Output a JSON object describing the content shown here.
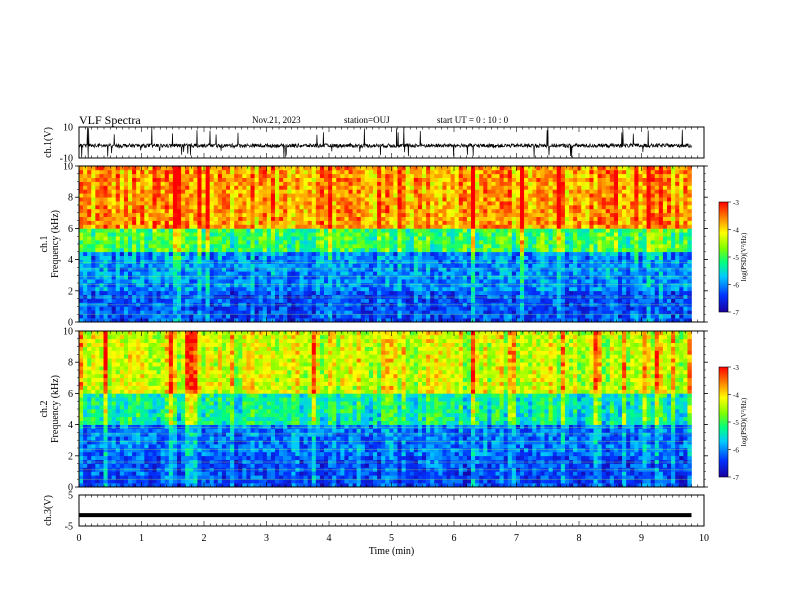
{
  "header": {
    "title": "VLF Spectra",
    "date": "Nov.21, 2023",
    "station": "station=OUJ",
    "start": "start UT =  0 : 10 : 0"
  },
  "chart_data": [
    {
      "type": "line",
      "panel": "ch1-waveform",
      "ylabel": "ch.1(V)",
      "ylim": [
        -10,
        10
      ],
      "yticks": [
        "10",
        "-10"
      ],
      "x_range_min": [
        0,
        10
      ],
      "description_values": "noisy waveform centered near 0 V with spikes up to about +10 V and down to about -10 V"
    },
    {
      "type": "heatmap",
      "panel": "ch1-spectrogram",
      "ylabel_top": "ch.1",
      "ylabel": "Frequency (kHz)",
      "ylim": [
        0,
        10
      ],
      "yticks": [
        "0",
        "2",
        "4",
        "6",
        "8",
        "10"
      ],
      "colorbar": {
        "label": "log(PSD)(V²/Hz)",
        "range": [
          -7,
          -3
        ],
        "ticks": [
          "-3",
          "-4",
          "-5",
          "-6",
          "-7"
        ]
      },
      "bands": [
        {
          "freq_kHz": [
            0,
            2
          ],
          "log_psd": -6.3
        },
        {
          "freq_kHz": [
            2,
            4.5
          ],
          "log_psd": -6.0
        },
        {
          "freq_kHz": [
            4.5,
            6
          ],
          "log_psd": -5.0
        },
        {
          "freq_kHz": [
            6,
            10
          ],
          "log_psd": -3.7
        }
      ]
    },
    {
      "type": "heatmap",
      "panel": "ch2-spectrogram",
      "ylabel_top": "ch.2",
      "ylabel": "Frequency (kHz)",
      "ylim": [
        0,
        10
      ],
      "yticks": [
        "0",
        "2",
        "4",
        "6",
        "8",
        "10"
      ],
      "colorbar": {
        "label": "log(PSD)(V²/Hz)",
        "range": [
          -7,
          -3
        ],
        "ticks": [
          "-3",
          "-4",
          "-5",
          "-6",
          "-7"
        ]
      },
      "bands": [
        {
          "freq_kHz": [
            0,
            2
          ],
          "log_psd": -6.3
        },
        {
          "freq_kHz": [
            2,
            4
          ],
          "log_psd": -6.1
        },
        {
          "freq_kHz": [
            4,
            6
          ],
          "log_psd": -5.3
        },
        {
          "freq_kHz": [
            6,
            10
          ],
          "log_psd": -4.3
        }
      ]
    },
    {
      "type": "line",
      "panel": "ch3-waveform",
      "ylabel": "ch.3(V)",
      "ylim": [
        -5,
        5
      ],
      "yticks": [
        "5",
        "-5"
      ],
      "xlabel": "Time (min)",
      "xlim": [
        0,
        10
      ],
      "xticks": [
        "0",
        "1",
        "2",
        "3",
        "4",
        "5",
        "6",
        "7",
        "8",
        "9",
        "10"
      ],
      "x": [
        0,
        9.8
      ],
      "y": [
        -1.5,
        -1.5
      ]
    }
  ]
}
